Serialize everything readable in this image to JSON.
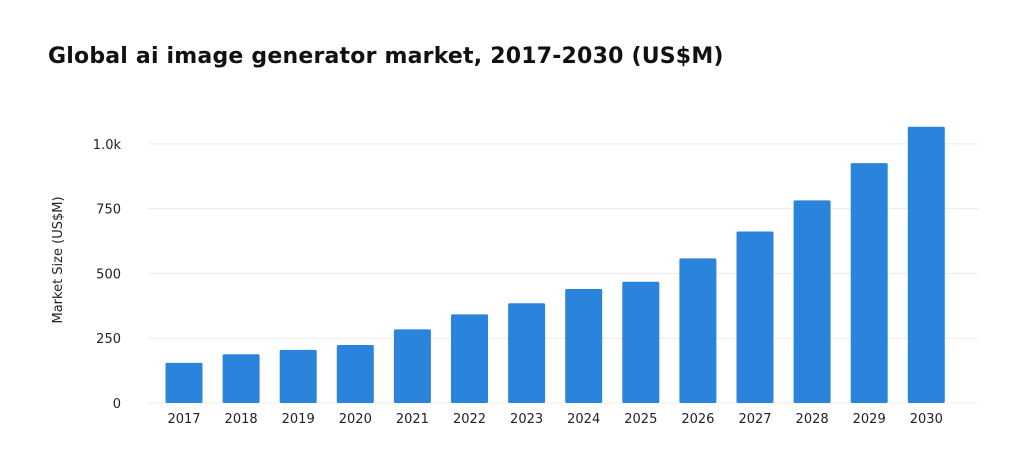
{
  "chart_data": {
    "type": "bar",
    "title": "Global ai image generator market, 2017-2030 (US$M)",
    "xlabel": "",
    "ylabel": "Market Size (US$M)",
    "categories": [
      "2017",
      "2018",
      "2019",
      "2020",
      "2021",
      "2022",
      "2023",
      "2024",
      "2025",
      "2026",
      "2027",
      "2028",
      "2029",
      "2030"
    ],
    "values": [
      155,
      188,
      205,
      224,
      284,
      342,
      385,
      440,
      468,
      558,
      662,
      782,
      926,
      1066
    ],
    "ylim": [
      0,
      1100
    ],
    "yticks": [
      0,
      250,
      500,
      750,
      1000
    ],
    "ytick_labels": [
      "0",
      "250",
      "500",
      "750",
      "1.0k"
    ],
    "grid": true,
    "colors": {
      "bar": "#2b84dc",
      "grid": "#ececec",
      "text": "#222222"
    }
  }
}
